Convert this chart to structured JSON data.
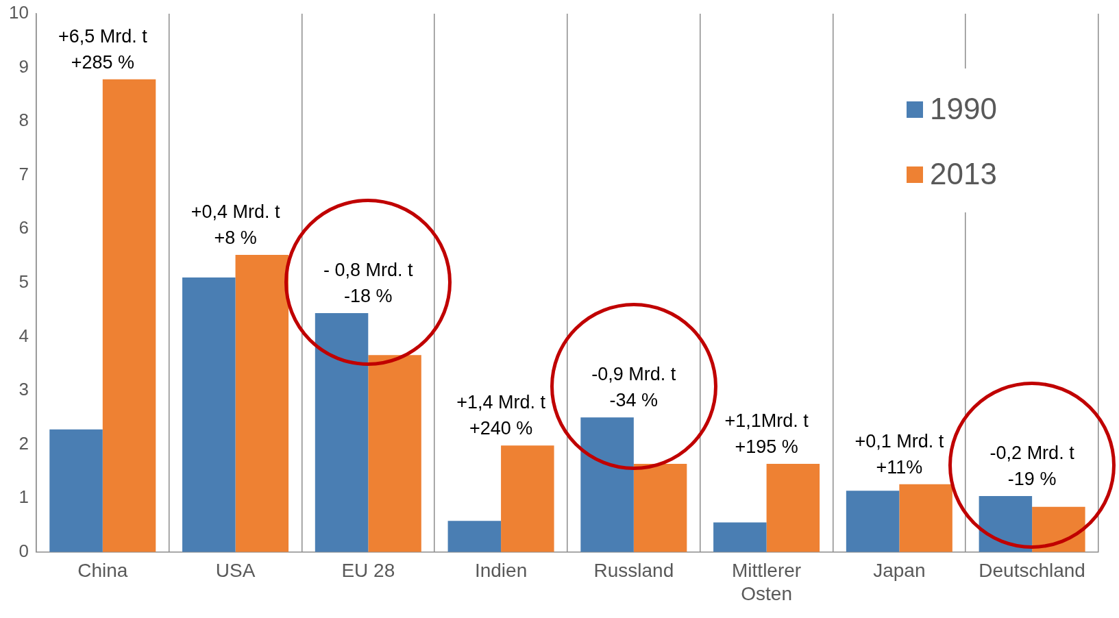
{
  "chart_data": {
    "type": "bar",
    "categories": [
      "China",
      "USA",
      "EU 28",
      "Indien",
      "Russland",
      "Mittlerer\nOsten",
      "Japan",
      "Deutschland"
    ],
    "series": [
      {
        "name": "1990",
        "color": "#4a7eb3",
        "values": [
          2.28,
          5.1,
          4.44,
          0.58,
          2.5,
          0.55,
          1.14,
          1.04
        ]
      },
      {
        "name": "2013",
        "color": "#ee8133",
        "values": [
          8.78,
          5.52,
          3.66,
          1.98,
          1.64,
          1.64,
          1.26,
          0.84
        ]
      }
    ],
    "ylim": [
      0,
      10
    ],
    "yticks": [
      0,
      1,
      2,
      3,
      4,
      5,
      6,
      7,
      8,
      9,
      10
    ],
    "grid": "x",
    "legend": "top right",
    "annotations": [
      "+6,5 Mrd. t\n+285 %",
      "+0,4 Mrd. t\n+8 %",
      "- 0,8 Mrd. t\n-18 %",
      "+1,4 Mrd. t\n+240 %",
      "-0,9 Mrd. t\n-34 %",
      "+1,1Mrd. t\n+195 %",
      "+0,1 Mrd. t\n+11%",
      "-0,2 Mrd. t\n-19 %"
    ]
  }
}
